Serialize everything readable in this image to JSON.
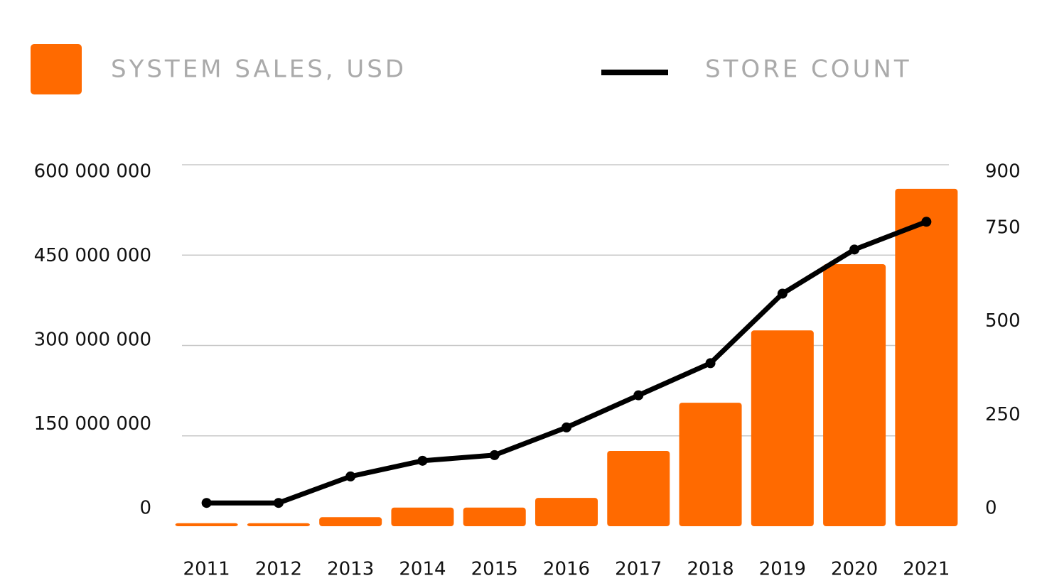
{
  "chart_data": {
    "type": "bar_line",
    "categories": [
      "2011",
      "2012",
      "2013",
      "2014",
      "2015",
      "2016",
      "2017",
      "2018",
      "2019",
      "2020",
      "2021"
    ],
    "series": [
      {
        "name": "SYSTEM SALES, USD",
        "type": "bar",
        "color": "#ff6a00",
        "values": [
          5000000,
          5000000,
          15000000,
          31000000,
          31000000,
          47000000,
          125000000,
          205000000,
          325000000,
          435000000,
          560000000
        ]
      },
      {
        "name": "STORE COUNT",
        "type": "line",
        "axis": "y2",
        "color": "#000000",
        "values": [
          58,
          58,
          124,
          163,
          177,
          246,
          326,
          406,
          579,
          689,
          758
        ]
      }
    ],
    "ylim": [
      0,
      600000000
    ],
    "yticks": [
      0,
      {
        "value": 150000000,
        "label": "150 000 000"
      },
      {
        "value": 300000000,
        "label": "300 000 000"
      },
      {
        "value": 450000000,
        "label": "450 000 000"
      },
      {
        "value": 600000000,
        "label": "600 000 000"
      }
    ],
    "y2lim": [
      0,
      900
    ],
    "y2ticks": [
      0,
      250,
      500,
      750,
      900
    ],
    "grid": true,
    "legend": "top"
  }
}
